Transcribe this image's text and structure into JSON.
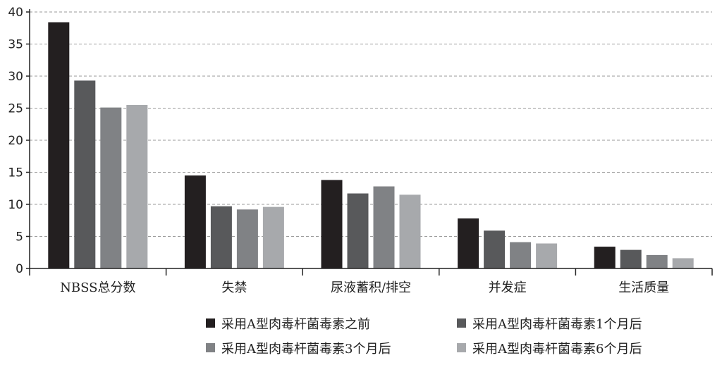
{
  "chart_data": {
    "type": "bar",
    "categories": [
      "NBSS总分数",
      "失禁",
      "尿液蓄积/排空",
      "并发症",
      "生活质量"
    ],
    "series": [
      {
        "name": "采用A型肉毒杆菌毒素之前",
        "color": "#231f20",
        "values": [
          38.4,
          14.5,
          13.8,
          7.8,
          3.4
        ]
      },
      {
        "name": "采用A型肉毒杆菌毒素1个月后",
        "color": "#58595b",
        "values": [
          29.3,
          9.7,
          11.7,
          5.9,
          2.9
        ]
      },
      {
        "name": "采用A型肉毒杆菌毒素3个月后",
        "color": "#808285",
        "values": [
          25.1,
          9.2,
          12.8,
          4.1,
          2.1
        ]
      },
      {
        "name": "采用A型肉毒杆菌毒素6个月后",
        "color": "#a7a9ac",
        "values": [
          25.5,
          9.6,
          11.5,
          3.9,
          1.6
        ]
      }
    ],
    "yticks": [
      0,
      5,
      10,
      15,
      20,
      25,
      30,
      35,
      40
    ],
    "ylim": [
      0,
      40
    ],
    "grid": true,
    "legend_position": "bottom-right"
  }
}
